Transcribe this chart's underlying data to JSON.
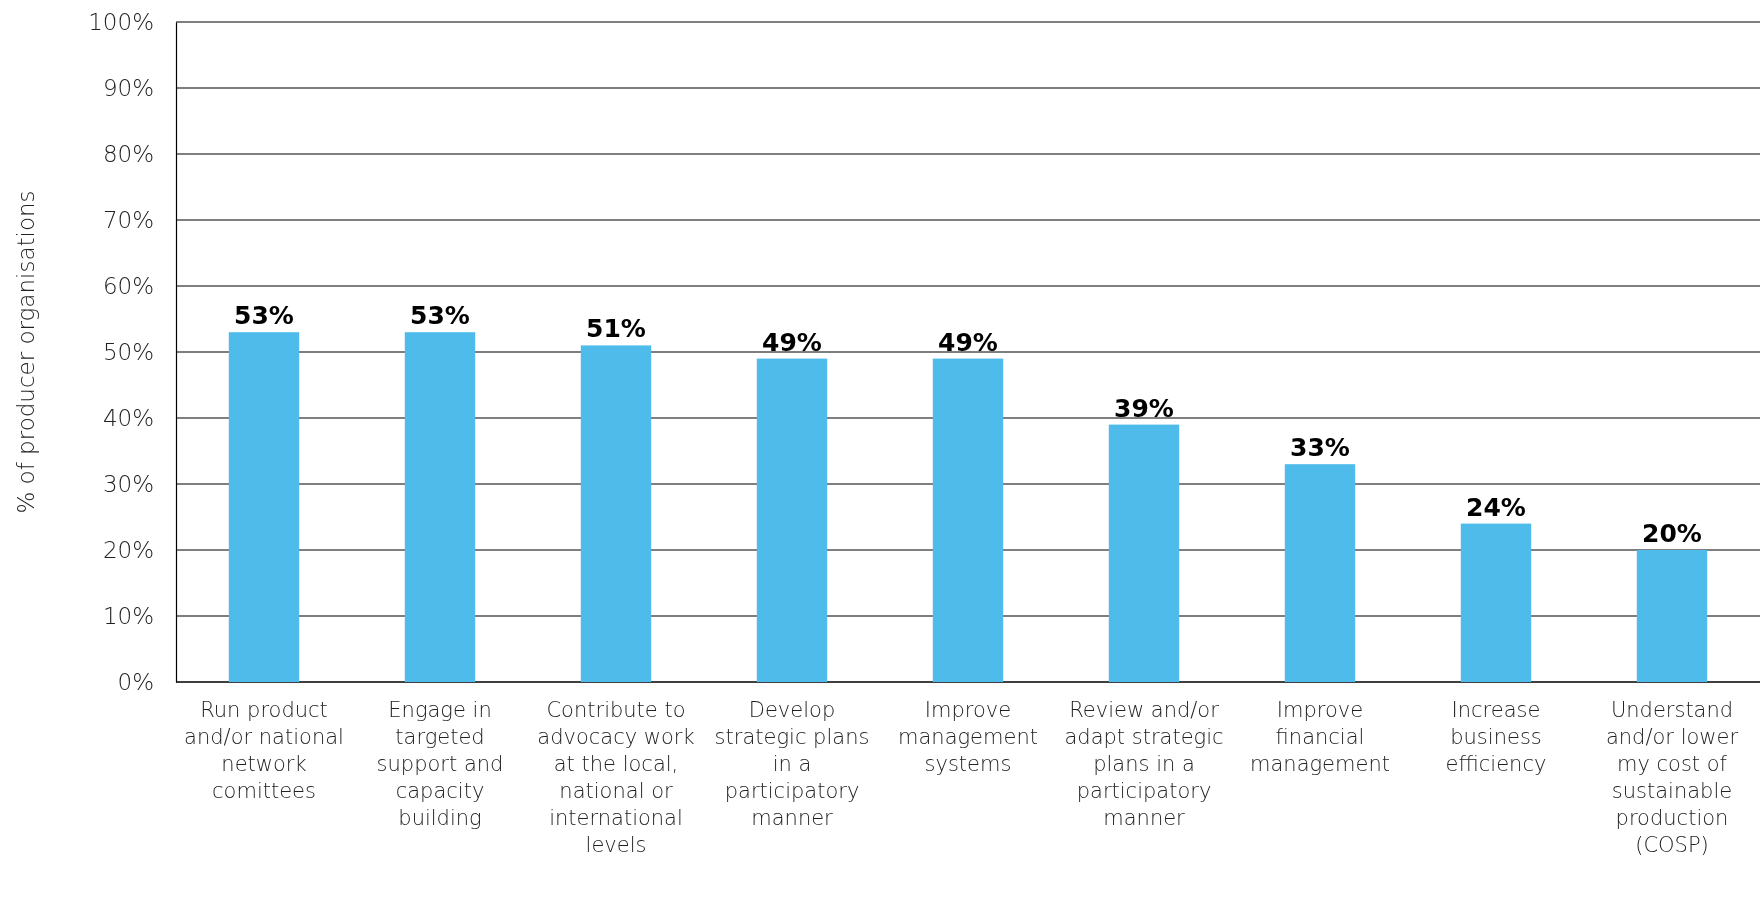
{
  "chart_data": {
    "type": "bar",
    "ylabel": "% of producer organisations",
    "categories": [
      "Run product and/or national network comittees",
      "Engage in targeted support and capacity building",
      "Contribute to advocacy work at the local, national or international levels",
      "Develop strategic plans in a participatory manner",
      "Improve management systems",
      "Review and/or adapt strategic plans in a participatory manner",
      "Improve financial management",
      "Increase business efficiency",
      "Understand and/or lower my cost of sustainable production (COSP)"
    ],
    "values": [
      53,
      53,
      51,
      49,
      49,
      39,
      33,
      24,
      20
    ],
    "color": "#4fbbeb",
    "value_labels": [
      "53%",
      "53%",
      "51%",
      "49%",
      "49%",
      "39%",
      "33%",
      "24%",
      "20%"
    ],
    "ylim": [
      0,
      100
    ],
    "yticks": [
      {
        "value": 0,
        "label": "0%"
      },
      {
        "value": 10,
        "label": "10%"
      },
      {
        "value": 20,
        "label": "20%"
      },
      {
        "value": 30,
        "label": "30%"
      },
      {
        "value": 40,
        "label": "40%"
      },
      {
        "value": 50,
        "label": "50%"
      },
      {
        "value": 60,
        "label": "60%"
      },
      {
        "value": 70,
        "label": "70%"
      },
      {
        "value": 80,
        "label": "80%"
      },
      {
        "value": 90,
        "label": "90%"
      },
      {
        "value": 100,
        "label": "100%"
      }
    ],
    "grid": "y"
  }
}
